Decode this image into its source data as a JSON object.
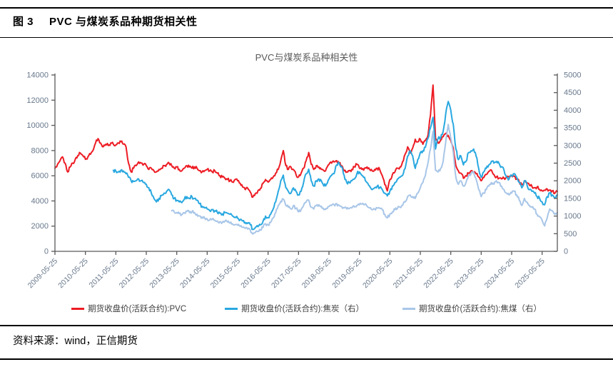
{
  "header": {
    "figure_label": "图 3",
    "figure_title": "PVC 与煤炭系品种期货相关性"
  },
  "source": {
    "text": "资料来源：wind，正信期货"
  },
  "chart_data": {
    "type": "line",
    "title": "PVC与煤炭系品种相关性",
    "grid": false,
    "legend_position": "bottom",
    "x_sampling": "monthly",
    "x_start": "2009-05",
    "x_end": "2025-11",
    "x_tick_labels": [
      "2009-05-25",
      "2010-05-25",
      "2011-05-25",
      "2012-05-25",
      "2013-05-25",
      "2014-05-25",
      "2015-05-25",
      "2016-05-25",
      "2017-05-25",
      "2018-05-25",
      "2019-05-25",
      "2020-05-25",
      "2021-05-25",
      "2022-05-25",
      "2023-05-25",
      "2024-05-25",
      "2025-05-25"
    ],
    "left_axis": {
      "min": 0,
      "max": 14000,
      "step": 2000,
      "ticks": [
        0,
        2000,
        4000,
        6000,
        8000,
        10000,
        12000,
        14000
      ]
    },
    "right_axis": {
      "min": 0,
      "max": 5000,
      "step": 500,
      "ticks": [
        0,
        500,
        1000,
        1500,
        2000,
        2500,
        3000,
        3500,
        4000,
        4500,
        5000
      ]
    },
    "colors": {
      "pvc": "#ed1c24",
      "coke": "#29a8e0",
      "coking_coal": "#a8c6e8",
      "axis_line": "#595959",
      "axis_label": "#68788c",
      "title_text": "#595959"
    },
    "series": [
      {
        "name": "期货收盘价(活跃合约):PVC",
        "axis": "left",
        "color": "#ed1c24",
        "noise_amp": 150,
        "values": [
          6600,
          6900,
          7200,
          7500,
          7000,
          6300,
          6700,
          7000,
          7300,
          7600,
          7800,
          7600,
          7300,
          7500,
          7700,
          8000,
          8600,
          8950,
          8600,
          8300,
          8500,
          8400,
          8600,
          8500,
          8450,
          8600,
          8700,
          8500,
          8300,
          7000,
          6300,
          6600,
          6800,
          7100,
          7000,
          6900,
          6800,
          6500,
          6600,
          6400,
          6300,
          6500,
          6600,
          6800,
          6900,
          7000,
          6800,
          6600,
          6700,
          6500,
          6400,
          6600,
          6800,
          6700,
          6600,
          6700,
          6600,
          6400,
          6300,
          6400,
          6500,
          6400,
          6300,
          6400,
          6200,
          6000,
          5900,
          5800,
          5700,
          5600,
          5500,
          5700,
          5600,
          5400,
          5100,
          4900,
          5000,
          4700,
          4300,
          4600,
          4800,
          5000,
          5400,
          5700,
          5500,
          5700,
          5900,
          6200,
          6500,
          7200,
          8000,
          6800,
          6500,
          6700,
          6500,
          6100,
          5900,
          6200,
          6600,
          7200,
          7850,
          6900,
          6500,
          6800,
          6700,
          6500,
          6400,
          6600,
          6900,
          7000,
          7100,
          7200,
          7000,
          6800,
          6400,
          6300,
          6400,
          6500,
          6700,
          6900,
          6600,
          6500,
          6600,
          6700,
          6500,
          6400,
          6500,
          6600,
          6500,
          6000,
          5300,
          4800,
          5700,
          6100,
          6300,
          6600,
          6700,
          7100,
          7700,
          8300,
          7800,
          8200,
          8900,
          8700,
          8900,
          8500,
          8800,
          9200,
          10800,
          13200,
          9000,
          8600,
          8800,
          9100,
          9350,
          9200,
          8800,
          8200,
          6800,
          6400,
          6200,
          5800,
          6000,
          6200,
          6400,
          6300,
          6150,
          5900,
          5600,
          5850,
          6100,
          6350,
          6450,
          6100,
          5900,
          5800,
          5750,
          5800,
          5850,
          5950,
          6050,
          5950,
          5750,
          5500,
          5300,
          5600,
          5450,
          5250,
          5150,
          5050,
          5100,
          4900,
          4800,
          4850,
          4950,
          4850,
          4800,
          4600,
          4750
        ]
      },
      {
        "name": "期货收盘价(活跃合约):焦炭（右）",
        "axis": "right",
        "color": "#29a8e0",
        "noise_amp": 60,
        "values": [
          null,
          null,
          null,
          null,
          null,
          null,
          null,
          null,
          null,
          null,
          null,
          null,
          null,
          null,
          null,
          null,
          null,
          null,
          null,
          null,
          null,
          null,
          null,
          2300,
          2280,
          2250,
          2300,
          2280,
          2200,
          2100,
          2000,
          1980,
          2000,
          2050,
          2000,
          1950,
          1900,
          1800,
          1650,
          1500,
          1400,
          1500,
          1580,
          1650,
          1700,
          1750,
          1600,
          1500,
          1450,
          1400,
          1380,
          1480,
          1550,
          1500,
          1550,
          1500,
          1450,
          1350,
          1280,
          1230,
          1200,
          1150,
          1180,
          1150,
          1100,
          1080,
          1060,
          1100,
          1080,
          1050,
          1000,
          970,
          940,
          900,
          860,
          820,
          790,
          750,
          620,
          680,
          700,
          750,
          850,
          1000,
          950,
          1050,
          1200,
          1400,
          1700,
          2000,
          2160,
          1800,
          1700,
          1650,
          1800,
          1700,
          1600,
          1700,
          1950,
          2200,
          2330,
          2000,
          1850,
          2000,
          2050,
          2000,
          1850,
          1900,
          2050,
          2150,
          2200,
          2450,
          2500,
          2400,
          2150,
          1950,
          1950,
          2000,
          2050,
          2200,
          2250,
          2150,
          2100,
          1950,
          1850,
          1750,
          1800,
          1850,
          1800,
          1750,
          1650,
          1570,
          1700,
          1850,
          1950,
          2050,
          2100,
          2150,
          2350,
          2700,
          2850,
          2700,
          2350,
          2600,
          2800,
          2850,
          2950,
          3200,
          3500,
          3800,
          2900,
          3200,
          3200,
          3400,
          3900,
          4250,
          4000,
          3600,
          2900,
          2600,
          2700,
          2450,
          2550,
          2800,
          2850,
          2900,
          2700,
          2350,
          2100,
          2250,
          2350,
          2450,
          2550,
          2500,
          2550,
          2500,
          2400,
          2300,
          2100,
          2050,
          2150,
          2200,
          2100,
          1950,
          1800,
          2000,
          1900,
          1750,
          1700,
          1650,
          1550,
          1500,
          1400,
          1320,
          1550,
          1650,
          1600,
          1520,
          1600
        ]
      },
      {
        "name": "期货收盘价(活跃合约):焦煤（右）",
        "axis": "right",
        "color": "#a8c6e8",
        "noise_amp": 50,
        "values": [
          null,
          null,
          null,
          null,
          null,
          null,
          null,
          null,
          null,
          null,
          null,
          null,
          null,
          null,
          null,
          null,
          null,
          null,
          null,
          null,
          null,
          null,
          null,
          null,
          null,
          null,
          null,
          null,
          null,
          null,
          null,
          null,
          null,
          null,
          null,
          null,
          null,
          null,
          null,
          null,
          null,
          null,
          null,
          null,
          null,
          null,
          1150,
          1120,
          1100,
          1070,
          1040,
          1090,
          1130,
          1100,
          1120,
          1100,
          1050,
          1000,
          970,
          940,
          920,
          890,
          910,
          880,
          860,
          840,
          820,
          850,
          830,
          800,
          780,
          760,
          740,
          710,
          680,
          650,
          630,
          600,
          490,
          540,
          560,
          600,
          680,
          780,
          750,
          820,
          950,
          1100,
          1300,
          1420,
          1480,
          1300,
          1250,
          1200,
          1300,
          1220,
          1120,
          1180,
          1300,
          1400,
          1450,
          1250,
          1200,
          1300,
          1320,
          1280,
          1180,
          1220,
          1270,
          1300,
          1320,
          1350,
          1300,
          1270,
          1230,
          1200,
          1210,
          1230,
          1260,
          1300,
          1320,
          1340,
          1320,
          1280,
          1230,
          1180,
          1200,
          1230,
          1220,
          1180,
          1050,
          950,
          1050,
          1120,
          1180,
          1220,
          1250,
          1300,
          1400,
          1550,
          1600,
          1550,
          1500,
          1650,
          1800,
          1950,
          2150,
          2500,
          2900,
          3400,
          2300,
          2250,
          2350,
          2550,
          3100,
          3600,
          3200,
          2800,
          2100,
          1900,
          2000,
          1850,
          1950,
          2150,
          2200,
          2250,
          2050,
          1750,
          1550,
          1650,
          1750,
          1850,
          1950,
          1900,
          2000,
          1950,
          1850,
          1750,
          1650,
          1600,
          1650,
          1700,
          1600,
          1450,
          1300,
          1500,
          1400,
          1300,
          1250,
          1200,
          1050,
          980,
          880,
          720,
          950,
          1200,
          1150,
          1050,
          1100
        ]
      }
    ]
  }
}
